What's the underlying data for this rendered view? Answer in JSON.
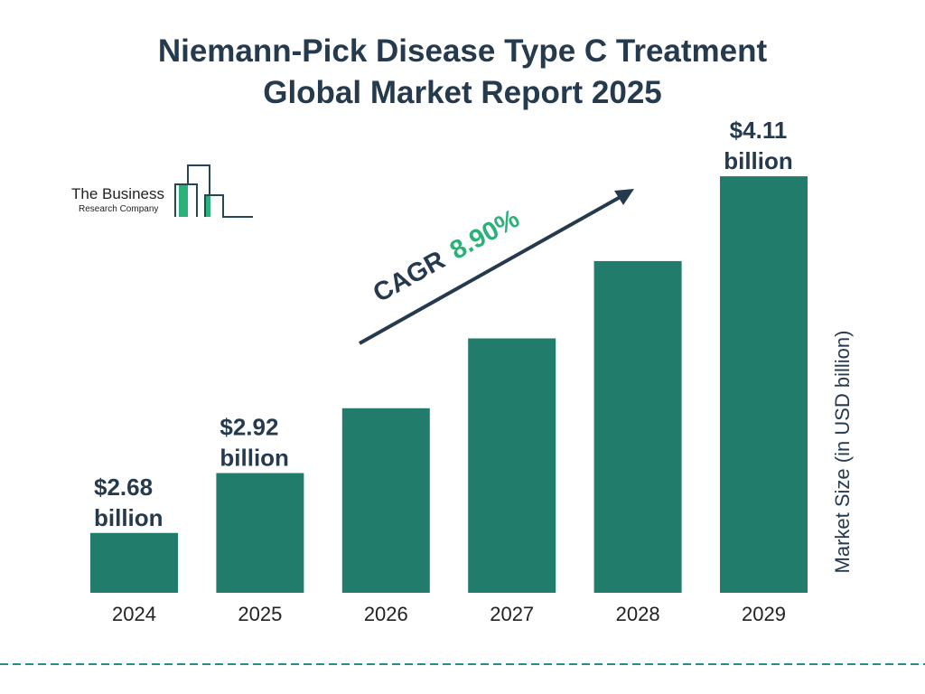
{
  "chart_data": {
    "type": "bar",
    "title": "Niemann-Pick Disease Type C Treatment Global Market Report 2025",
    "categories": [
      "2024",
      "2025",
      "2026",
      "2027",
      "2028",
      "2029"
    ],
    "values": [
      2.68,
      2.92,
      3.18,
      3.46,
      3.77,
      4.11
    ],
    "data_labels": [
      "$2.68 billion",
      "$2.92 billion",
      "",
      "",
      "",
      "$4.11 billion"
    ],
    "ylabel": "Market Size (in USD billion)",
    "xlabel": "",
    "annotation": {
      "label": "CAGR",
      "value": "8.90%"
    },
    "grid": false,
    "colors": {
      "bar": "#217c6b",
      "title": "#263a4e",
      "cagr_value": "#2bb27a",
      "divider": "#2a8c85"
    }
  },
  "logo": {
    "line1": "The Business",
    "line2": "Research Company"
  }
}
